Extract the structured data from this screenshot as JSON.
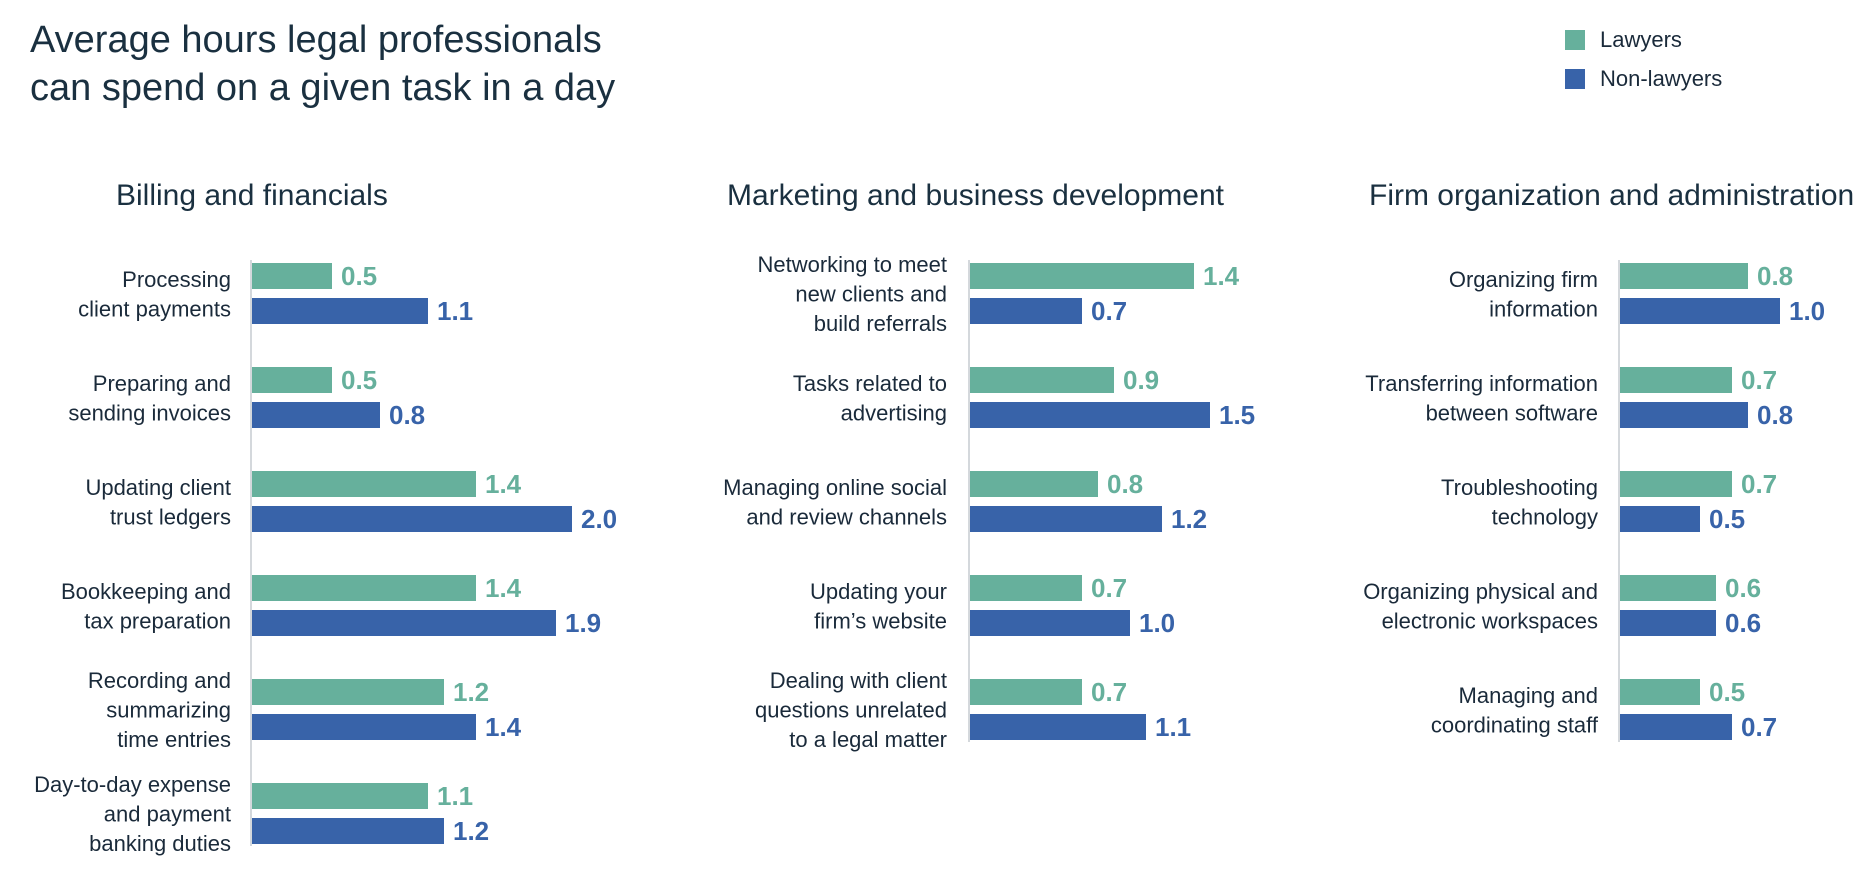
{
  "title_lines": [
    "Average hours legal professionals",
    "can spend on a given task in a day"
  ],
  "colors": {
    "lawyers": "#66b09c",
    "non_lawyers": "#3863a9",
    "axis": "#d4d8dc"
  },
  "legend": [
    {
      "name": "Lawyers",
      "color": "#66b09c"
    },
    {
      "name": "Non-lawyers",
      "color": "#3863a9"
    }
  ],
  "chart_data": [
    {
      "type": "bar",
      "orientation": "horizontal",
      "title": "Billing and financials",
      "categories": [
        [
          "Processing",
          "client payments"
        ],
        [
          "Preparing and",
          "sending invoices"
        ],
        [
          "Updating client",
          "trust ledgers"
        ],
        [
          "Bookkeeping and",
          "tax preparation"
        ],
        [
          "Recording and",
          "summarizing",
          "time entries"
        ],
        [
          "Day-to-day expense",
          "and payment",
          "banking duties"
        ]
      ],
      "series": [
        {
          "name": "Lawyers",
          "values": [
            0.5,
            0.5,
            1.4,
            1.4,
            1.2,
            1.1
          ]
        },
        {
          "name": "Non-lawyers",
          "values": [
            1.1,
            0.8,
            2.0,
            1.9,
            1.4,
            1.2
          ]
        }
      ],
      "value_labels": [
        [
          "0.5",
          "0.5",
          "1.4",
          "1.4",
          "1.2",
          "1.1"
        ],
        [
          "1.1",
          "0.8",
          "2.0",
          "1.9",
          "1.4",
          "1.2"
        ]
      ]
    },
    {
      "type": "bar",
      "orientation": "horizontal",
      "title": "Marketing and business development",
      "categories": [
        [
          "Networking to meet",
          "new clients and",
          "build referrals"
        ],
        [
          "Tasks related to",
          "advertising"
        ],
        [
          "Managing online social",
          "and review channels"
        ],
        [
          "Updating your",
          "firm’s website"
        ],
        [
          "Dealing with client",
          "questions unrelated",
          "to a legal matter"
        ]
      ],
      "series": [
        {
          "name": "Lawyers",
          "values": [
            1.4,
            0.9,
            0.8,
            0.7,
            0.7
          ]
        },
        {
          "name": "Non-lawyers",
          "values": [
            0.7,
            1.5,
            1.2,
            1.0,
            1.1
          ]
        }
      ],
      "value_labels": [
        [
          "1.4",
          "0.9",
          "0.8",
          "0.7",
          "0.7"
        ],
        [
          "0.7",
          "1.5",
          "1.2",
          "1.0",
          "1.1"
        ]
      ]
    },
    {
      "type": "bar",
      "orientation": "horizontal",
      "title": "Firm organization and administration",
      "categories": [
        [
          "Organizing firm",
          "information"
        ],
        [
          "Transferring information",
          "between software"
        ],
        [
          "Troubleshooting",
          "technology"
        ],
        [
          "Organizing physical and",
          "electronic workspaces"
        ],
        [
          "Managing and",
          "coordinating staff"
        ]
      ],
      "series": [
        {
          "name": "Lawyers",
          "values": [
            0.8,
            0.7,
            0.7,
            0.6,
            0.5
          ]
        },
        {
          "name": "Non-lawyers",
          "values": [
            1.0,
            0.8,
            0.5,
            0.6,
            0.7
          ]
        }
      ],
      "value_labels": [
        [
          "0.8",
          "0.7",
          "0.7",
          "0.6",
          "0.5"
        ],
        [
          "1.0",
          "0.8",
          "0.5",
          "0.6",
          "0.7"
        ]
      ]
    }
  ]
}
